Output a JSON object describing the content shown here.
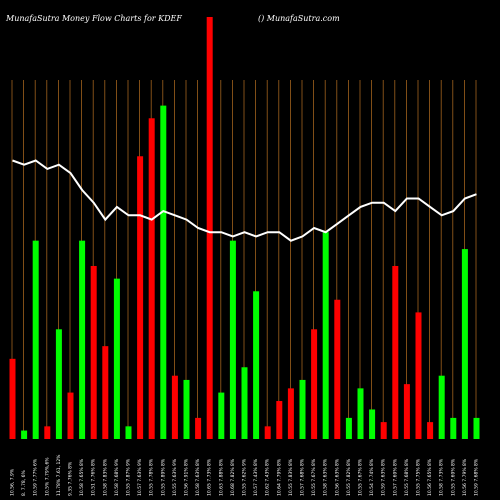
{
  "header": {
    "left_title": "MunafaSutra  Money Flow  Charts for KDEF",
    "right_title": "() MunafaSutra.com"
  },
  "colors": {
    "background": "#000000",
    "gridline": "#a0621d",
    "up_bar": "#00ff00",
    "down_bar": "#ff0000",
    "price_line": "#ffffff"
  },
  "chart_data": {
    "type": "bar",
    "title": "MunafaSutra  Money Flow  Charts for KDEF",
    "xlabel": "",
    "ylabel": "",
    "grid": true,
    "ylim": [
      0,
      100
    ],
    "categories": [
      "10.56, 7.9%",
      "8. 7.78, 6%",
      "10.59 7.77% 6%",
      "10.5% 7.79%,6%",
      "11.78% 7.61, 12%",
      "9.35 7.76% 8%",
      "10.58 7.65% 8%",
      "10.51 7.76% 8%",
      "10.58 7.83% 8%",
      "10.58 7.68% 9%",
      "10.55 7.87% 9%",
      "10.57 7.63% 9%",
      "10.55 7.78% 8%",
      "10.55 7.89% 8%",
      "10.55 7.63% 9%",
      "10.56 7.91% 8%",
      "10.58 7.63% 8%",
      "10.65 7.73% 8%",
      "10.63 7.88% 8%",
      "10.68 7.82% 8%",
      "10.55 7.62% 9%",
      "10.57 7.43% 8%",
      "10.62 7.43% 8%",
      "10.64 7.79% 8%",
      "10.55 7.83% 8%",
      "10.57 7.68% 8%",
      "10.55 7.67% 8%",
      "10.58 7.63% 8%",
      "10.56 7.63% 8%",
      "10.55 7.82% 8%",
      "10.55 7.67% 8%",
      "10.54 7.74% 8%",
      "10.59 7.63% 8%",
      "10.57 7.69% 8%",
      "10.55 7.68% 8%",
      "10.55 7.75% 8%",
      "10.56 7.65% 8%",
      "10.58 7.73% 8%",
      "10.55 7.69% 8%",
      "10.56 7.79% 8%",
      "10.59 7.68% 8%"
    ],
    "series": [
      {
        "values": [
          19,
          2,
          47,
          3,
          26,
          11,
          47,
          41,
          22,
          38,
          3,
          67,
          76,
          79,
          15,
          14,
          5,
          100,
          11,
          47,
          17,
          35,
          3,
          9,
          12,
          14,
          26,
          49,
          33,
          5,
          12,
          7,
          4,
          41,
          13,
          30,
          4,
          15,
          5,
          45,
          5
        ],
        "colors": [
          "down",
          "up",
          "up",
          "down",
          "up",
          "down",
          "up",
          "down",
          "down",
          "up",
          "up",
          "down",
          "down",
          "up",
          "down",
          "up",
          "down",
          "down",
          "up",
          "up",
          "up",
          "up",
          "down",
          "down",
          "down",
          "up",
          "down",
          "up",
          "down",
          "up",
          "up",
          "up",
          "down",
          "down",
          "down",
          "down",
          "down",
          "up",
          "up",
          "up",
          "up"
        ]
      },
      {
        "values": [
          66,
          65,
          66,
          64,
          65,
          63,
          59,
          56,
          52,
          55,
          53,
          53,
          52,
          54,
          53,
          52,
          50,
          49,
          49,
          48,
          49,
          48,
          49,
          49,
          47,
          48,
          50,
          49,
          51,
          53,
          55,
          56,
          56,
          54,
          57,
          57,
          55,
          53,
          54,
          57,
          58
        ]
      }
    ]
  }
}
